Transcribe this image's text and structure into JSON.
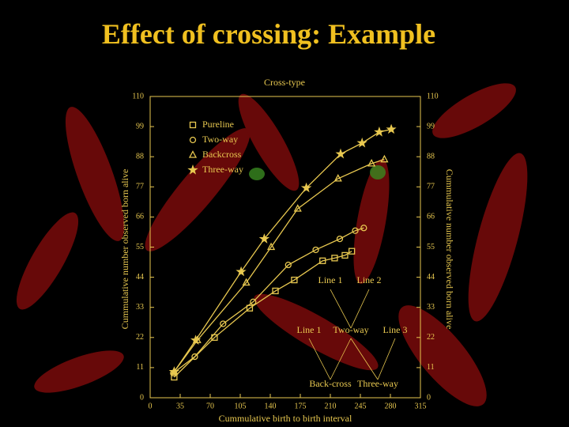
{
  "chart_data": {
    "type": "line",
    "title": "Effect of crossing: Example",
    "legend_title": "Cross-type",
    "x_label": "Cummulative birth to birth interval",
    "y_label": "Cummulative number observed born alive",
    "y2_label": "Cummulative number observed born alive",
    "xlim": [
      0,
      315
    ],
    "xticks": [
      0,
      35,
      70,
      105,
      140,
      175,
      210,
      245,
      280,
      315
    ],
    "ylim": [
      0,
      110
    ],
    "yticks": [
      0,
      11,
      22,
      33,
      44,
      55,
      66,
      77,
      88,
      99,
      110
    ],
    "color": "#e8c850",
    "series": [
      {
        "name": "Pureline",
        "marker": "square",
        "x": [
          28,
          75,
          116,
          146,
          168,
          201,
          215,
          227,
          235
        ],
        "values": [
          7.5,
          22,
          32.7,
          39,
          43,
          50,
          51,
          52,
          53.5
        ]
      },
      {
        "name": "Two-way",
        "marker": "circle",
        "x": [
          27,
          52,
          85,
          120,
          161,
          193,
          221,
          239,
          249
        ],
        "values": [
          9,
          15,
          27,
          35,
          48.5,
          54,
          58,
          61,
          62
        ]
      },
      {
        "name": "Backcross",
        "marker": "triangle",
        "x": [
          28,
          55,
          112,
          141,
          172,
          219,
          258,
          273
        ],
        "values": [
          9.5,
          21,
          42,
          55,
          69,
          80,
          85.5,
          87
        ]
      },
      {
        "name": "Three-way",
        "marker": "star",
        "x": [
          28,
          53,
          106,
          133,
          182,
          222,
          247,
          267,
          281
        ],
        "values": [
          9.5,
          21,
          46,
          58,
          76.6,
          89,
          93,
          97,
          98
        ]
      }
    ],
    "annotations": [
      "Line 1",
      "Line 2",
      "Line 1",
      "Two-way",
      "Line 3",
      "Back-cross",
      "Three-way"
    ]
  }
}
